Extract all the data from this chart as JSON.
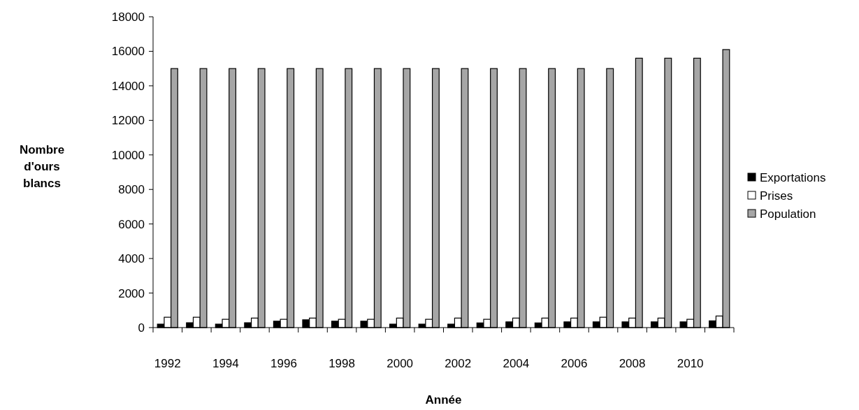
{
  "chart_data": {
    "type": "bar",
    "xlabel": "Année",
    "ylabel": "Nombre d'ours blancs",
    "categories": [
      "1992",
      null,
      "1994",
      null,
      "1996",
      null,
      "1998",
      null,
      "2000",
      null,
      "2002",
      null,
      "2004",
      null,
      "2006",
      null,
      "2008",
      null,
      "2010",
      null
    ],
    "series": [
      {
        "name": "Exportations",
        "color": "#000000",
        "values": [
          200,
          280,
          200,
          280,
          370,
          450,
          370,
          370,
          200,
          200,
          200,
          270,
          330,
          270,
          330,
          330,
          330,
          330,
          330,
          390
        ]
      },
      {
        "name": "Prises",
        "color": "#ffffff",
        "values": [
          600,
          600,
          480,
          550,
          480,
          550,
          480,
          480,
          550,
          480,
          550,
          480,
          550,
          550,
          550,
          600,
          550,
          550,
          480,
          670
        ]
      },
      {
        "name": "Population",
        "color": "#a6a6a6",
        "values": [
          15000,
          15000,
          15000,
          15000,
          15000,
          15000,
          15000,
          15000,
          15000,
          15000,
          15000,
          15000,
          15000,
          15000,
          15000,
          15000,
          15600,
          15600,
          15600,
          16100
        ]
      }
    ],
    "ylim": [
      0,
      18000
    ],
    "yticks": [
      0,
      2000,
      4000,
      6000,
      8000,
      10000,
      12000,
      14000,
      16000,
      18000
    ],
    "grid": false,
    "legend": "right"
  }
}
